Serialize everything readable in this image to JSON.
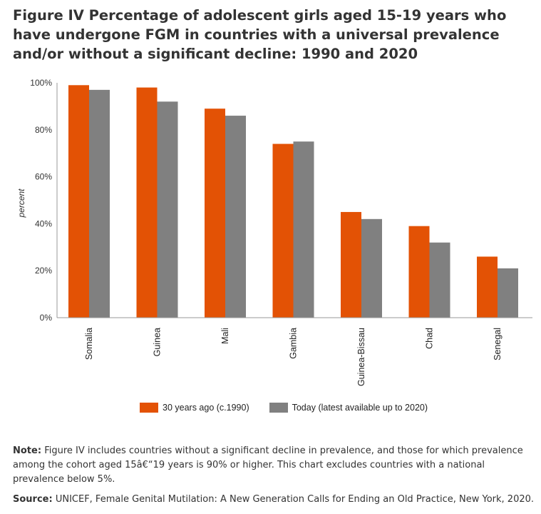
{
  "title": {
    "figure_label": "Figure IV",
    "text": "Percentage of adolescent girls aged 15-19 years who have undergone FGM in countries with a universal prevalence and/or without a significant decline: 1990 and 2020"
  },
  "note": {
    "label": "Note:",
    "text": "Figure IV includes countries without a significant decline in prevalence, and those for which prevalence among the cohort aged 15â€“19 years is 90% or higher. This chart excludes countries with a national prevalence below 5%."
  },
  "source": {
    "label": "Source:",
    "text": "UNICEF, Female Genital Mutilation: A New Generation Calls for Ending an Old Practice, New York, 2020."
  },
  "colors": {
    "series_1990": "#e35205",
    "series_today": "#808080",
    "axis": "#999999"
  },
  "chart_data": {
    "type": "bar",
    "categories": [
      "Somalia",
      "Guinea",
      "Mali",
      "Gambia",
      "Guinea-Bissau",
      "Chad",
      "Senegal"
    ],
    "series": [
      {
        "name": "30 years ago (c.1990)",
        "values": [
          99,
          98,
          89,
          74,
          45,
          39,
          26
        ]
      },
      {
        "name": "Today (latest available up to 2020)",
        "values": [
          97,
          92,
          86,
          75,
          42,
          32,
          21
        ]
      }
    ],
    "ylabel": "percent",
    "ylim": [
      0,
      100
    ],
    "yticks": [
      "0%",
      "20%",
      "40%",
      "60%",
      "80%",
      "100%"
    ],
    "ytick_values": [
      0,
      20,
      40,
      60,
      80,
      100
    ],
    "grid": false,
    "legend_position": "bottom"
  }
}
